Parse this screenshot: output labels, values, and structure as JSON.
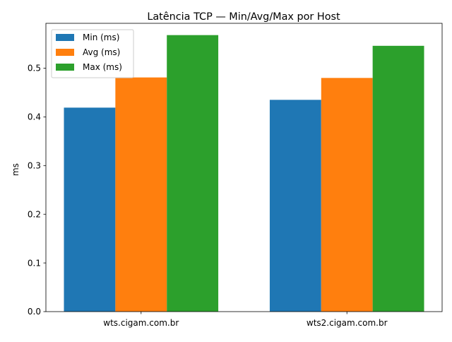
{
  "chart_data": {
    "type": "bar",
    "title": "Latência TCP — Min/Avg/Max por Host",
    "xlabel": "",
    "ylabel": "ms",
    "categories": [
      "wts.cigam.com.br",
      "wts2.cigam.com.br"
    ],
    "series": [
      {
        "name": "Min (ms)",
        "values": [
          0.419,
          0.435
        ],
        "color": "#1f77b4"
      },
      {
        "name": "Avg (ms)",
        "values": [
          0.481,
          0.48
        ],
        "color": "#ff7f0e"
      },
      {
        "name": "Max (ms)",
        "values": [
          0.568,
          0.546
        ],
        "color": "#2ca02c"
      }
    ],
    "ylim": [
      0,
      0.5922
    ],
    "yticks": [
      "0.0",
      "0.1",
      "0.2",
      "0.3",
      "0.4",
      "0.5"
    ],
    "grid": false,
    "legend": "top-left"
  }
}
